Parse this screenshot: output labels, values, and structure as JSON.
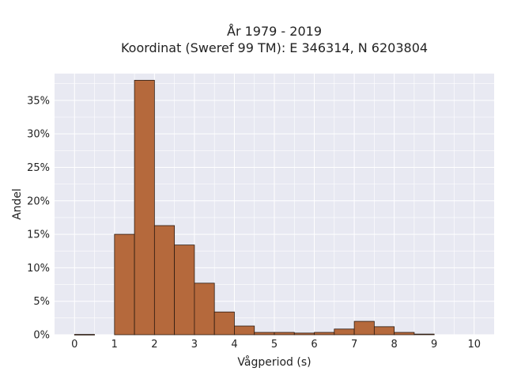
{
  "chart_data": {
    "type": "bar",
    "title": "År 1979 - 2019",
    "subtitle": "Koordinat (Sweref 99 TM): E 346314, N 6203804",
    "xlabel": "Vågperiod (s)",
    "ylabel": "Andel",
    "xlim": [
      -0.5,
      10.5
    ],
    "ylim": [
      0,
      39
    ],
    "x_ticks": [
      0,
      1,
      2,
      3,
      4,
      5,
      6,
      7,
      8,
      9,
      10
    ],
    "x_tick_labels": [
      "0",
      "1",
      "2",
      "3",
      "4",
      "5",
      "6",
      "7",
      "8",
      "9",
      "10"
    ],
    "y_ticks": [
      0,
      5,
      10,
      15,
      20,
      25,
      30,
      35
    ],
    "y_tick_labels": [
      "0%",
      "5%",
      "10%",
      "15%",
      "20%",
      "25%",
      "30%",
      "35%"
    ],
    "bin_width": 0.5,
    "bins_start": [
      0,
      0.5,
      1,
      1.5,
      2,
      2.5,
      3,
      3.5,
      4,
      4.5,
      5,
      5.5,
      6,
      6.5,
      7,
      7.5,
      8,
      8.5,
      9,
      9.5
    ],
    "values": [
      0.05,
      0,
      15.0,
      38.0,
      16.3,
      13.4,
      7.7,
      3.4,
      1.3,
      0.35,
      0.35,
      0.25,
      0.35,
      0.85,
      2.0,
      1.2,
      0.35,
      0.1,
      0,
      0
    ],
    "grid": true,
    "legend": "none",
    "colors": {
      "bar_fill": "#b5693c",
      "bar_edge": "#2b1a10",
      "plot_background": "#e8e9f2",
      "grid": "#ffffff"
    }
  }
}
